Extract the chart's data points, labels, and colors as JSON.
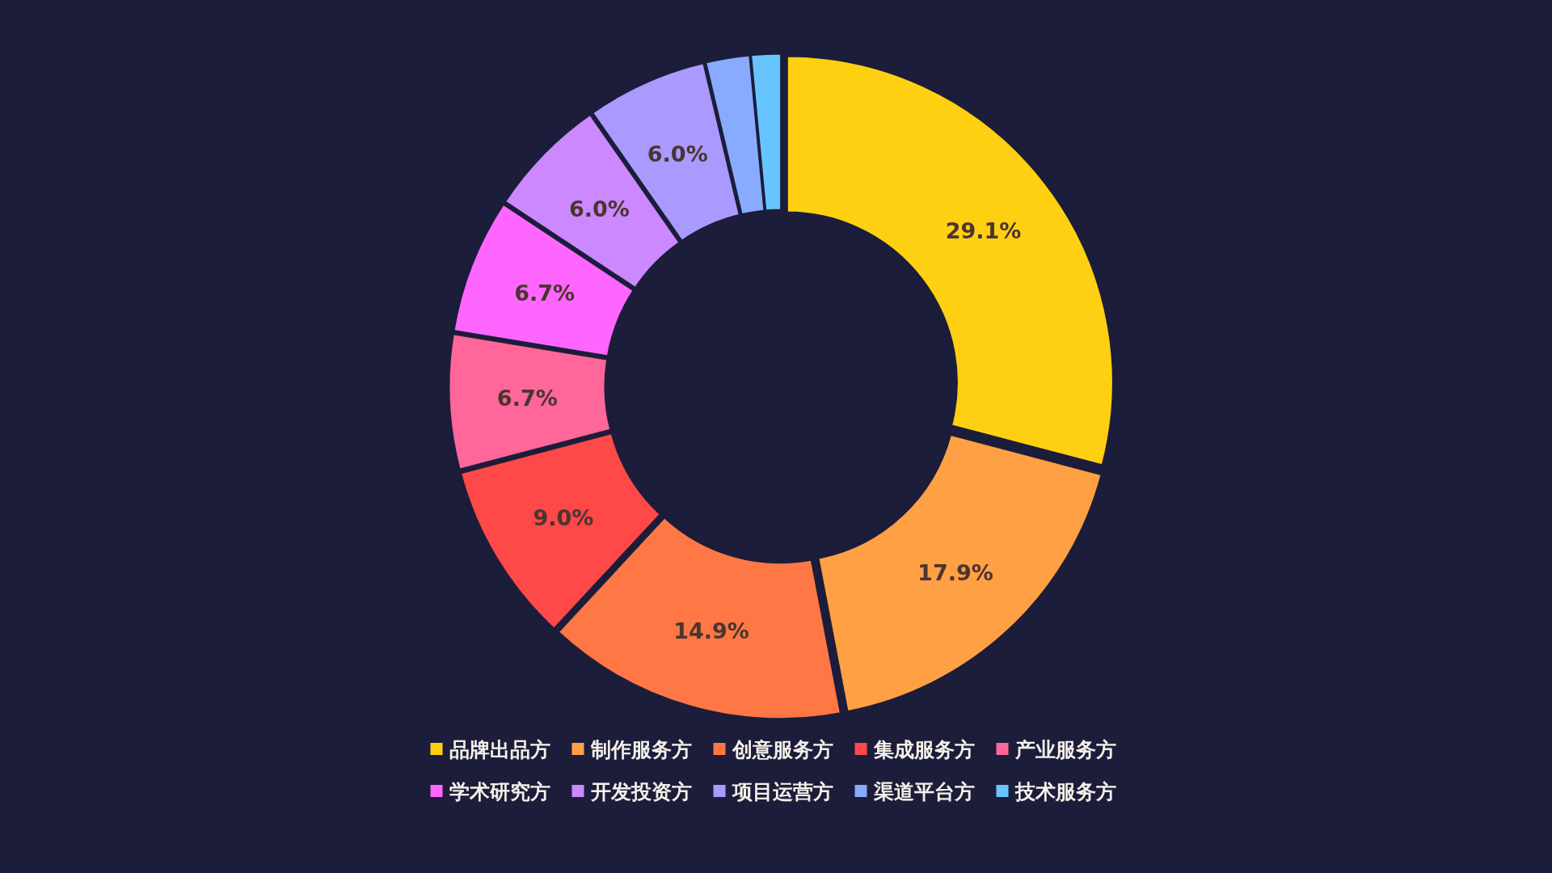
{
  "chart_data": {
    "type": "donut",
    "categories": [
      "品牌出品方",
      "制作服务方",
      "创意服务方",
      "集成服务方",
      "产业服务方",
      "学术研究方",
      "开发投资方",
      "项目运营方",
      "渠道平台方",
      "技术服务方"
    ],
    "values": [
      29.1,
      17.9,
      14.9,
      9.0,
      6.7,
      6.7,
      6.0,
      6.0,
      2.2,
      1.5
    ],
    "colors": [
      "#ffd012",
      "#ffa044",
      "#ff7744",
      "#ff4848",
      "#ff6699",
      "#ff66ff",
      "#cc88ff",
      "#aa99ff",
      "#88aaff",
      "#66c4ff"
    ],
    "value_labels": [
      "29.1%",
      "17.9%",
      "14.9%",
      "9.0%",
      "6.7%",
      "6.7%",
      "6.0%",
      "6.0%",
      null,
      null
    ],
    "legend": "bottom"
  }
}
